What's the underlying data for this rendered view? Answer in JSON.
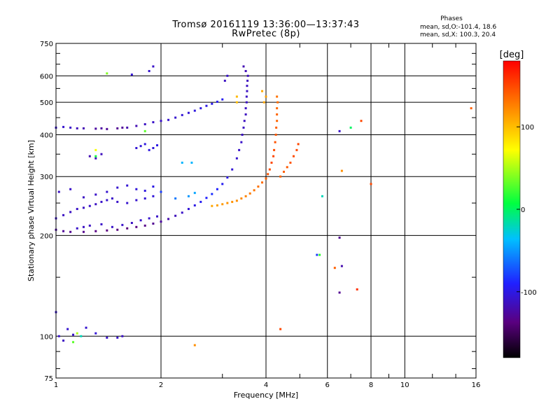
{
  "header": {
    "title_line1": "Tromsø 20161119 13:36:00—13:37:43",
    "title_line2": "RwPretec (8p)",
    "phases_title": "Phases",
    "phases_o": "mean, sd,O:-101.4, 18.6",
    "phases_x": "mean, sd,X: 100.3, 20.4"
  },
  "chart_data": {
    "type": "scatter",
    "xlabel": "Frequency [MHz]",
    "ylabel": "Stationary phase Virtual Height [km]",
    "xscale": "log",
    "yscale": "log",
    "xlim": [
      1,
      16
    ],
    "ylim": [
      75,
      750
    ],
    "x_ticks": [
      1,
      2,
      4,
      6,
      8,
      10,
      16
    ],
    "y_ticks": [
      75,
      100,
      200,
      300,
      400,
      500,
      600,
      750
    ],
    "colorbar": {
      "label": "[deg]",
      "range": [
        -180,
        180
      ],
      "ticks": [
        100,
        0,
        -100
      ]
    },
    "series": [
      {
        "points": [
          [
            1.0,
            420,
            -108
          ],
          [
            1.05,
            422,
            -108
          ],
          [
            1.1,
            420,
            -110
          ],
          [
            1.15,
            418,
            -115
          ],
          [
            1.2,
            418,
            -118
          ],
          [
            1.3,
            417,
            -125
          ],
          [
            1.35,
            418,
            -125
          ],
          [
            1.4,
            416,
            -128
          ],
          [
            1.5,
            418,
            -130
          ],
          [
            1.55,
            420,
            -128
          ],
          [
            1.6,
            420,
            -120
          ],
          [
            1.7,
            425,
            -118
          ],
          [
            1.8,
            430,
            -112
          ],
          [
            1.9,
            436,
            -110
          ],
          [
            2.0,
            440,
            -110
          ],
          [
            2.1,
            443,
            -108
          ],
          [
            2.2,
            450,
            -108
          ],
          [
            2.3,
            458,
            -105
          ],
          [
            2.4,
            465,
            -105
          ],
          [
            2.5,
            472,
            -102
          ],
          [
            2.6,
            480,
            -100
          ],
          [
            2.7,
            488,
            -100
          ],
          [
            2.8,
            495,
            -98
          ],
          [
            2.9,
            502,
            -96
          ],
          [
            3.0,
            510,
            -95
          ],
          [
            1.0,
            208,
            -125
          ],
          [
            1.05,
            206,
            -128
          ],
          [
            1.1,
            205,
            -130
          ],
          [
            1.2,
            205,
            -132
          ],
          [
            1.3,
            206,
            -135
          ],
          [
            1.4,
            207,
            -137
          ],
          [
            1.5,
            208,
            -138
          ],
          [
            1.6,
            210,
            -138
          ],
          [
            1.7,
            212,
            -136
          ],
          [
            1.8,
            214,
            -134
          ],
          [
            1.9,
            217,
            -130
          ],
          [
            2.0,
            220,
            -125
          ],
          [
            2.1,
            224,
            -120
          ],
          [
            2.2,
            229,
            -115
          ],
          [
            2.3,
            234,
            -110
          ],
          [
            2.4,
            240,
            -105
          ],
          [
            2.5,
            246,
            -100
          ],
          [
            2.6,
            252,
            -95
          ],
          [
            2.7,
            259,
            -90
          ],
          [
            2.8,
            266,
            -85
          ],
          [
            2.9,
            275,
            -90
          ],
          [
            3.0,
            285,
            -95
          ],
          [
            3.1,
            298,
            -100
          ],
          [
            3.2,
            315,
            -105
          ],
          [
            3.3,
            340,
            -108
          ],
          [
            3.35,
            360,
            -110
          ],
          [
            3.4,
            380,
            -110
          ],
          [
            3.42,
            400,
            -112
          ],
          [
            3.45,
            420,
            -112
          ],
          [
            3.47,
            440,
            -113
          ],
          [
            3.5,
            460,
            -113
          ],
          [
            3.5,
            480,
            -112
          ],
          [
            3.52,
            500,
            -112
          ],
          [
            3.52,
            520,
            -112
          ],
          [
            3.53,
            540,
            -112
          ],
          [
            3.53,
            560,
            -113
          ],
          [
            3.54,
            580,
            -114
          ],
          [
            3.55,
            600,
            -115
          ],
          [
            3.5,
            620,
            -116
          ],
          [
            3.45,
            640,
            -118
          ],
          [
            1.0,
            225,
            -110
          ],
          [
            1.05,
            230,
            -112
          ],
          [
            1.1,
            235,
            -112
          ],
          [
            1.15,
            240,
            -110
          ],
          [
            1.2,
            242,
            -112
          ],
          [
            1.25,
            245,
            -110
          ],
          [
            1.3,
            248,
            -112
          ],
          [
            1.35,
            252,
            -110
          ],
          [
            1.4,
            255,
            -108
          ],
          [
            1.45,
            258,
            -110
          ],
          [
            1.5,
            252,
            -110
          ],
          [
            1.6,
            250,
            -108
          ],
          [
            1.7,
            255,
            -108
          ],
          [
            1.8,
            258,
            -105
          ],
          [
            1.9,
            262,
            -104
          ],
          [
            1.02,
            270,
            -112
          ],
          [
            1.1,
            275,
            -110
          ],
          [
            1.2,
            260,
            -112
          ],
          [
            1.3,
            265,
            -110
          ],
          [
            1.4,
            270,
            -108
          ],
          [
            1.5,
            278,
            -108
          ],
          [
            1.6,
            282,
            -106
          ],
          [
            1.7,
            275,
            -104
          ],
          [
            1.8,
            272,
            -102
          ],
          [
            1.9,
            280,
            -100
          ],
          [
            2.0,
            270,
            -80
          ],
          [
            2.2,
            258,
            -60
          ],
          [
            2.4,
            262,
            -50
          ],
          [
            2.5,
            268,
            -45
          ],
          [
            1.25,
            345,
            -118
          ],
          [
            1.3,
            340,
            -116
          ],
          [
            1.35,
            350,
            -114
          ],
          [
            1.7,
            365,
            -106
          ],
          [
            1.75,
            370,
            -104
          ],
          [
            1.8,
            375,
            -102
          ],
          [
            1.85,
            360,
            -102
          ],
          [
            1.9,
            365,
            -104
          ],
          [
            1.95,
            372,
            -100
          ],
          [
            2.3,
            330,
            -40
          ],
          [
            1.3,
            360,
            70
          ],
          [
            1.3,
            345,
            10
          ],
          [
            2.45,
            330,
            -40
          ],
          [
            1.8,
            410,
            30
          ],
          [
            1.9,
            640,
            -110
          ],
          [
            1.85,
            620,
            -108
          ],
          [
            1.65,
            605,
            -105
          ],
          [
            1.4,
            610,
            40
          ],
          [
            3.05,
            580,
            -112
          ],
          [
            3.1,
            600,
            -110
          ],
          [
            1.15,
            210,
            -110
          ],
          [
            1.2,
            212,
            -112
          ],
          [
            1.25,
            214,
            -112
          ],
          [
            1.35,
            216,
            -110
          ],
          [
            1.45,
            212,
            -110
          ],
          [
            1.55,
            215,
            -110
          ],
          [
            1.65,
            218,
            -112
          ],
          [
            1.75,
            222,
            -110
          ],
          [
            1.85,
            225,
            -108
          ],
          [
            1.95,
            228,
            -110
          ],
          [
            1.02,
            100,
            -110
          ],
          [
            1.05,
            97,
            -112
          ],
          [
            1.08,
            105,
            -108
          ],
          [
            1.12,
            101,
            -110
          ],
          [
            1.15,
            102,
            50
          ],
          [
            1.18,
            100,
            -20
          ],
          [
            1.22,
            106,
            -108
          ],
          [
            1.3,
            102,
            -105
          ],
          [
            1.4,
            99,
            -110
          ],
          [
            1.5,
            99,
            -110
          ],
          [
            1.55,
            100,
            -112
          ],
          [
            1.0,
            118,
            -108
          ],
          [
            1.12,
            96,
            30
          ],
          [
            4.4,
            105,
            150
          ],
          [
            2.5,
            94,
            120
          ],
          [
            6.5,
            197,
            -130
          ],
          [
            6.5,
            135,
            -130
          ],
          [
            7.3,
            138,
            160
          ],
          [
            6.3,
            160,
            140
          ],
          [
            6.6,
            162,
            -120
          ],
          [
            5.7,
            175,
            20
          ],
          [
            5.6,
            175,
            -80
          ],
          [
            6.5,
            410,
            -110
          ],
          [
            7.0,
            420,
            0
          ],
          [
            7.5,
            440,
            150
          ],
          [
            8.0,
            285,
            150
          ],
          [
            6.6,
            312,
            120
          ],
          [
            5.8,
            262,
            -20
          ],
          [
            15.5,
            480,
            140
          ]
        ]
      },
      {
        "points": [
          [
            2.8,
            245,
            110
          ],
          [
            2.9,
            246,
            112
          ],
          [
            3.0,
            248,
            115
          ],
          [
            3.1,
            250,
            118
          ],
          [
            3.2,
            252,
            118
          ],
          [
            3.3,
            254,
            120
          ],
          [
            3.4,
            258,
            122
          ],
          [
            3.5,
            262,
            125
          ],
          [
            3.6,
            267,
            128
          ],
          [
            3.7,
            273,
            130
          ],
          [
            3.8,
            280,
            132
          ],
          [
            3.9,
            288,
            135
          ],
          [
            4.0,
            296,
            140
          ],
          [
            4.05,
            305,
            145
          ],
          [
            4.1,
            315,
            148
          ],
          [
            4.15,
            330,
            150
          ],
          [
            4.2,
            345,
            150
          ],
          [
            4.22,
            360,
            148
          ],
          [
            4.25,
            380,
            145
          ],
          [
            4.27,
            400,
            142
          ],
          [
            4.28,
            420,
            140
          ],
          [
            4.3,
            440,
            138
          ],
          [
            4.3,
            460,
            138
          ],
          [
            4.3,
            480,
            136
          ],
          [
            4.32,
            500,
            135
          ],
          [
            4.3,
            520,
            132
          ],
          [
            4.4,
            300,
            138
          ],
          [
            4.5,
            310,
            140
          ],
          [
            4.6,
            320,
            142
          ],
          [
            4.7,
            330,
            145
          ],
          [
            4.8,
            345,
            148
          ],
          [
            4.9,
            360,
            150
          ],
          [
            4.95,
            375,
            150
          ],
          [
            3.95,
            500,
            110
          ],
          [
            4.0,
            520,
            112
          ],
          [
            3.9,
            540,
            108
          ],
          [
            3.3,
            500,
            100
          ],
          [
            3.3,
            520,
            102
          ]
        ]
      }
    ]
  }
}
